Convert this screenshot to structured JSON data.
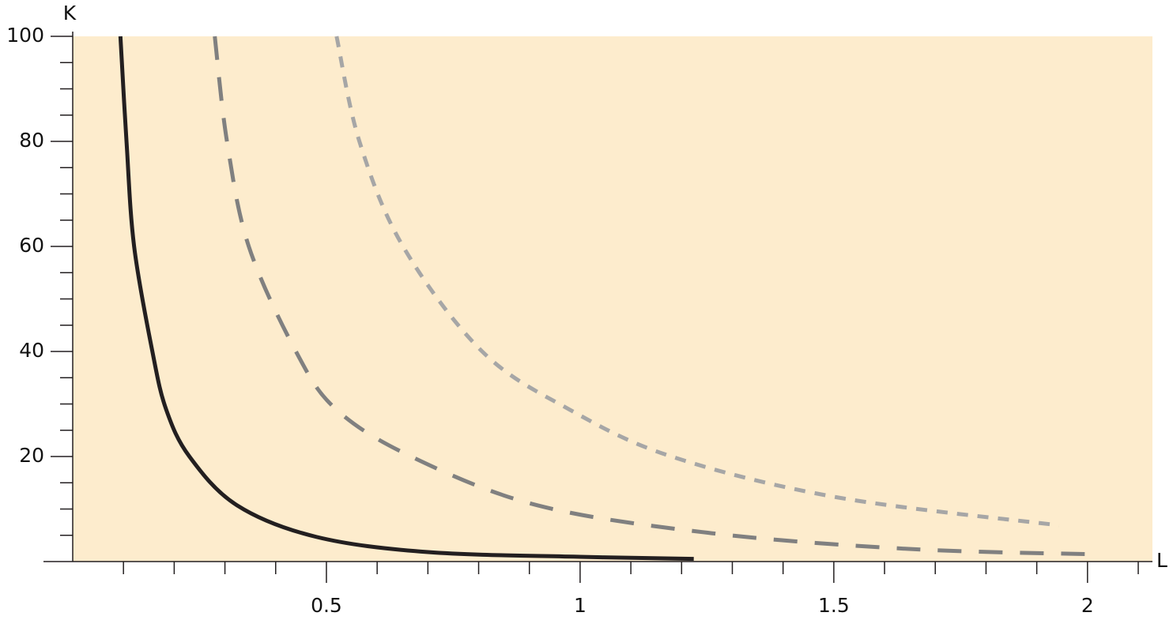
{
  "chart_data": {
    "type": "line",
    "x_label": "L",
    "y_label": "K",
    "xlim": [
      0,
      2.128
    ],
    "ylim": [
      0,
      100
    ],
    "xticks": [
      0.5,
      1,
      1.5,
      2
    ],
    "xminorticks": [
      0.1,
      0.2,
      0.3,
      0.4,
      0.6,
      0.7,
      0.8,
      0.9,
      1.1,
      1.2,
      1.3,
      1.4,
      1.6,
      1.7,
      1.8,
      1.9,
      2.1
    ],
    "yticks": [
      20,
      40,
      60,
      80,
      100
    ],
    "yminorticks": [
      5,
      10,
      15,
      25,
      30,
      35,
      45,
      50,
      55,
      65,
      70,
      75,
      85,
      90,
      95
    ],
    "background": "#fdeccd",
    "series": [
      {
        "color": "#231f20",
        "dash": "solid",
        "x": [
          0.094,
          0.106,
          0.121,
          0.157,
          0.184,
          0.23,
          0.324,
          0.48,
          0.7,
          1.0,
          1.224
        ],
        "values": [
          100,
          80,
          60,
          40,
          29,
          20,
          10.7,
          4.7,
          1.8,
          0.9,
          0.5
        ]
      },
      {
        "color": "#808080",
        "dash": "long",
        "x": [
          0.28,
          0.304,
          0.347,
          0.44,
          0.519,
          0.667,
          0.916,
          1.259,
          1.648,
          2.006
        ],
        "values": [
          100,
          80,
          60,
          40,
          29,
          20,
          10.7,
          5.4,
          2.4,
          1.4
        ]
      },
      {
        "color": "#a6a6a6",
        "dash": "short",
        "x": [
          0.52,
          0.565,
          0.651,
          0.807,
          0.978,
          1.18,
          1.508,
          1.944
        ],
        "values": [
          100,
          80,
          60,
          40,
          29,
          20,
          12.2,
          6.9
        ]
      }
    ]
  }
}
